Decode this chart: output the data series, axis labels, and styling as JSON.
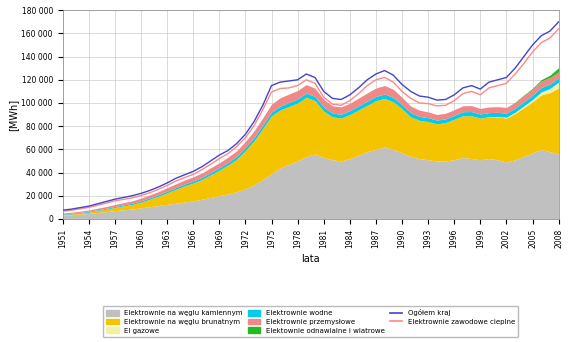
{
  "xlabel": "lata",
  "ylabel": "[MWh]",
  "years": [
    1951,
    1952,
    1953,
    1954,
    1955,
    1956,
    1957,
    1958,
    1959,
    1960,
    1961,
    1962,
    1963,
    1964,
    1965,
    1966,
    1967,
    1968,
    1969,
    1970,
    1971,
    1972,
    1973,
    1974,
    1975,
    1976,
    1977,
    1978,
    1979,
    1980,
    1981,
    1982,
    1983,
    1984,
    1985,
    1986,
    1987,
    1988,
    1989,
    1990,
    1991,
    1992,
    1993,
    1994,
    1995,
    1996,
    1997,
    1998,
    1999,
    2000,
    2001,
    2002,
    2003,
    2004,
    2005,
    2006,
    2007,
    2008
  ],
  "wegiel_kamienny": [
    3200,
    3600,
    4100,
    4700,
    5500,
    6200,
    7100,
    7800,
    8500,
    9500,
    10500,
    11500,
    12500,
    13500,
    14500,
    15500,
    17000,
    18500,
    20000,
    21500,
    23500,
    26000,
    29500,
    34000,
    39000,
    44000,
    47000,
    50000,
    54000,
    56000,
    53000,
    51000,
    50000,
    52000,
    55000,
    58000,
    60000,
    62000,
    60000,
    57000,
    54000,
    52000,
    51000,
    50000,
    50000,
    51000,
    53000,
    52000,
    51000,
    52000,
    51000,
    49000,
    51000,
    54000,
    57000,
    60000,
    58000,
    56000
  ],
  "wegiel_brunatny": [
    500,
    700,
    900,
    1200,
    1700,
    2200,
    2800,
    3400,
    4000,
    5000,
    6500,
    8000,
    10000,
    12000,
    14000,
    15500,
    17000,
    19500,
    22000,
    25000,
    28000,
    33000,
    38000,
    44000,
    50000,
    50000,
    50000,
    50000,
    51000,
    46000,
    40000,
    37000,
    37000,
    38000,
    39000,
    40000,
    42000,
    42000,
    41000,
    38000,
    34000,
    33000,
    33000,
    32000,
    33000,
    35000,
    36000,
    37000,
    36000,
    36000,
    37000,
    38000,
    40000,
    42000,
    44000,
    47000,
    51000,
    57000
  ],
  "el_gazowe": [
    0,
    0,
    0,
    0,
    0,
    0,
    0,
    0,
    0,
    0,
    0,
    0,
    0,
    0,
    0,
    0,
    0,
    0,
    0,
    0,
    0,
    0,
    0,
    0,
    0,
    0,
    0,
    0,
    0,
    0,
    0,
    0,
    0,
    0,
    0,
    0,
    0,
    0,
    0,
    0,
    0,
    0,
    0,
    0,
    0,
    0,
    0,
    0,
    0,
    200,
    400,
    800,
    1000,
    1500,
    2000,
    2500,
    3500,
    5000
  ],
  "elektrownie_wodne": [
    500,
    550,
    600,
    650,
    700,
    750,
    800,
    900,
    1000,
    1100,
    1200,
    1300,
    1400,
    1500,
    1600,
    1700,
    1800,
    2000,
    2100,
    2200,
    2400,
    2600,
    2800,
    3000,
    3200,
    3300,
    3400,
    3500,
    3600,
    3600,
    3400,
    3300,
    3300,
    3400,
    3500,
    3600,
    3700,
    3800,
    3700,
    3600,
    3500,
    3400,
    3300,
    3300,
    3300,
    3400,
    3500,
    3600,
    3500,
    3500,
    3500,
    3400,
    3500,
    3600,
    3700,
    3800,
    3900,
    3700
  ],
  "elektrownie_przemyslowe": [
    800,
    900,
    1000,
    1100,
    1300,
    1500,
    1700,
    1900,
    2100,
    2300,
    2500,
    2700,
    3000,
    3200,
    3400,
    3600,
    3800,
    4100,
    4300,
    4600,
    4900,
    5200,
    5700,
    6200,
    6800,
    7200,
    7300,
    7300,
    7300,
    7100,
    6700,
    6300,
    6300,
    6400,
    6700,
    7100,
    7200,
    7300,
    7100,
    6300,
    5800,
    5400,
    5000,
    4800,
    4800,
    4800,
    5100,
    5100,
    4800,
    4800,
    4800,
    4700,
    4800,
    5200,
    5200,
    5600,
    5600,
    5200
  ],
  "elektrownie_odnawialne": [
    0,
    0,
    0,
    0,
    0,
    0,
    0,
    0,
    0,
    0,
    0,
    0,
    0,
    0,
    0,
    0,
    0,
    0,
    0,
    0,
    0,
    0,
    0,
    0,
    0,
    0,
    0,
    0,
    0,
    0,
    0,
    0,
    0,
    0,
    0,
    0,
    0,
    0,
    0,
    0,
    0,
    0,
    0,
    0,
    0,
    0,
    0,
    0,
    0,
    50,
    100,
    200,
    400,
    600,
    800,
    1200,
    2000,
    3500
  ],
  "ogolnie_kraj": [
    7500,
    8400,
    9700,
    11000,
    13000,
    15000,
    17000,
    18500,
    20000,
    22000,
    24500,
    27500,
    31000,
    35000,
    38000,
    41000,
    45000,
    50000,
    55000,
    59000,
    65000,
    73000,
    84000,
    98000,
    115000,
    118000,
    119000,
    120000,
    125000,
    122000,
    110000,
    104000,
    103000,
    107000,
    113000,
    120000,
    125000,
    128000,
    124000,
    116000,
    110000,
    106000,
    105000,
    102500,
    103000,
    107000,
    113000,
    115000,
    112000,
    118000,
    120000,
    122000,
    130000,
    140000,
    150000,
    158000,
    162000,
    170000
  ],
  "elektrownie_zawodowe_cieplne": [
    6500,
    7500,
    8700,
    9900,
    11700,
    13600,
    15600,
    16800,
    18200,
    20200,
    22500,
    25500,
    28900,
    32600,
    35600,
    38400,
    42500,
    47100,
    52000,
    56300,
    62500,
    70000,
    80500,
    94200,
    109500,
    112500,
    113000,
    115000,
    120000,
    117000,
    105000,
    99000,
    98000,
    102000,
    108000,
    115000,
    120000,
    122000,
    118000,
    110000,
    104000,
    100000,
    99500,
    97500,
    98000,
    102000,
    108000,
    110000,
    107000,
    113000,
    115000,
    117000,
    125000,
    134000,
    144000,
    152000,
    156000,
    164000
  ],
  "colors": {
    "wegiel_kamienny": "#c0c0c0",
    "wegiel_brunatny": "#f5c400",
    "el_gazowe": "#f5f0a0",
    "elektrownie_wodne": "#00ccee",
    "elektrownie_przemyslowe": "#f08888",
    "elektrownie_odnawialne": "#22bb22",
    "ogolnie_kraj": "#4444cc",
    "elektrownie_zawodowe_cieplne": "#ff8888"
  },
  "legend_labels": {
    "wegiel_kamienny": "Elektrownie na węglu kamiennym",
    "wegiel_brunatny": "Elektrownie na węglu brunatnym",
    "el_gazowe": "El gazowe",
    "elektrownie_wodne": "Elektrownie wodne",
    "elektrownie_przemyslowe": "Elektrownie przemysłowe",
    "elektrownie_odnawialne": "Elektownie odnawialne i wiatrowe",
    "ogolnie_kraj": "Ogółem kraj",
    "elektrownie_zawodowe_cieplne": "Elektrownie zawodowe cieplne"
  },
  "ylim": [
    0,
    180000
  ],
  "yticks": [
    0,
    20000,
    40000,
    60000,
    80000,
    100000,
    120000,
    140000,
    160000,
    180000
  ],
  "background_color": "#ffffff",
  "grid_color": "#cccccc"
}
